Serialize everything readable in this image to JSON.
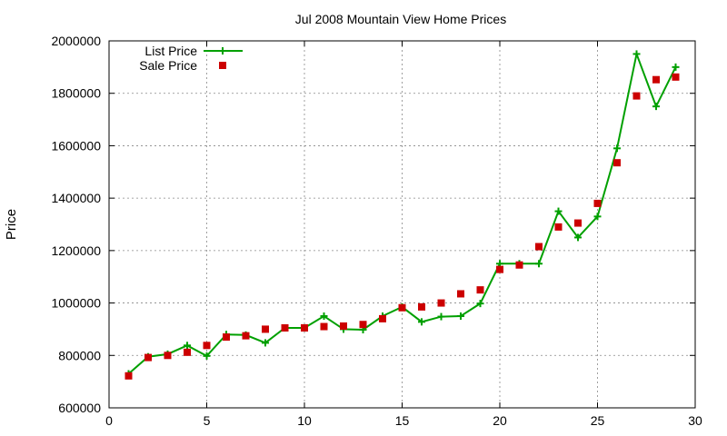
{
  "chart_data": {
    "type": "line",
    "title": "Jul 2008 Mountain View Home Prices",
    "xlabel": "",
    "ylabel": "Price",
    "xlim": [
      0,
      30
    ],
    "ylim": [
      600000,
      2000000
    ],
    "xticks": [
      0,
      5,
      10,
      15,
      20,
      25,
      30
    ],
    "yticks": [
      600000,
      800000,
      1000000,
      1200000,
      1400000,
      1600000,
      1800000,
      2000000
    ],
    "grid": true,
    "legend_position": "top-left",
    "series": [
      {
        "name": "List Price",
        "style": "line-with-plus-markers",
        "color": "#00a000",
        "x": [
          1,
          2,
          3,
          4,
          5,
          6,
          7,
          8,
          9,
          10,
          11,
          12,
          13,
          14,
          15,
          16,
          17,
          18,
          19,
          20,
          21,
          22,
          23,
          24,
          25,
          26,
          27,
          28,
          29
        ],
        "y": [
          730000,
          795000,
          805000,
          838000,
          798000,
          880000,
          878000,
          848000,
          905000,
          905000,
          950000,
          900000,
          898000,
          950000,
          985000,
          928000,
          948000,
          950000,
          998000,
          1150000,
          1150000,
          1150000,
          1350000,
          1250000,
          1330000,
          1590000,
          1950000,
          1750000,
          1900000
        ]
      },
      {
        "name": "Sale Price",
        "style": "square-markers",
        "color": "#cc0000",
        "x": [
          1,
          2,
          3,
          4,
          5,
          6,
          7,
          8,
          9,
          10,
          11,
          12,
          13,
          14,
          15,
          16,
          17,
          18,
          19,
          20,
          21,
          22,
          23,
          24,
          25,
          26,
          27,
          28,
          29
        ],
        "y": [
          722000,
          792000,
          800000,
          812000,
          838000,
          870000,
          875000,
          900000,
          905000,
          905000,
          910000,
          912000,
          918000,
          940000,
          982000,
          985000,
          1000000,
          1035000,
          1050000,
          1128000,
          1145000,
          1215000,
          1290000,
          1305000,
          1380000,
          1535000,
          1790000,
          1852000,
          1862000
        ]
      }
    ]
  }
}
